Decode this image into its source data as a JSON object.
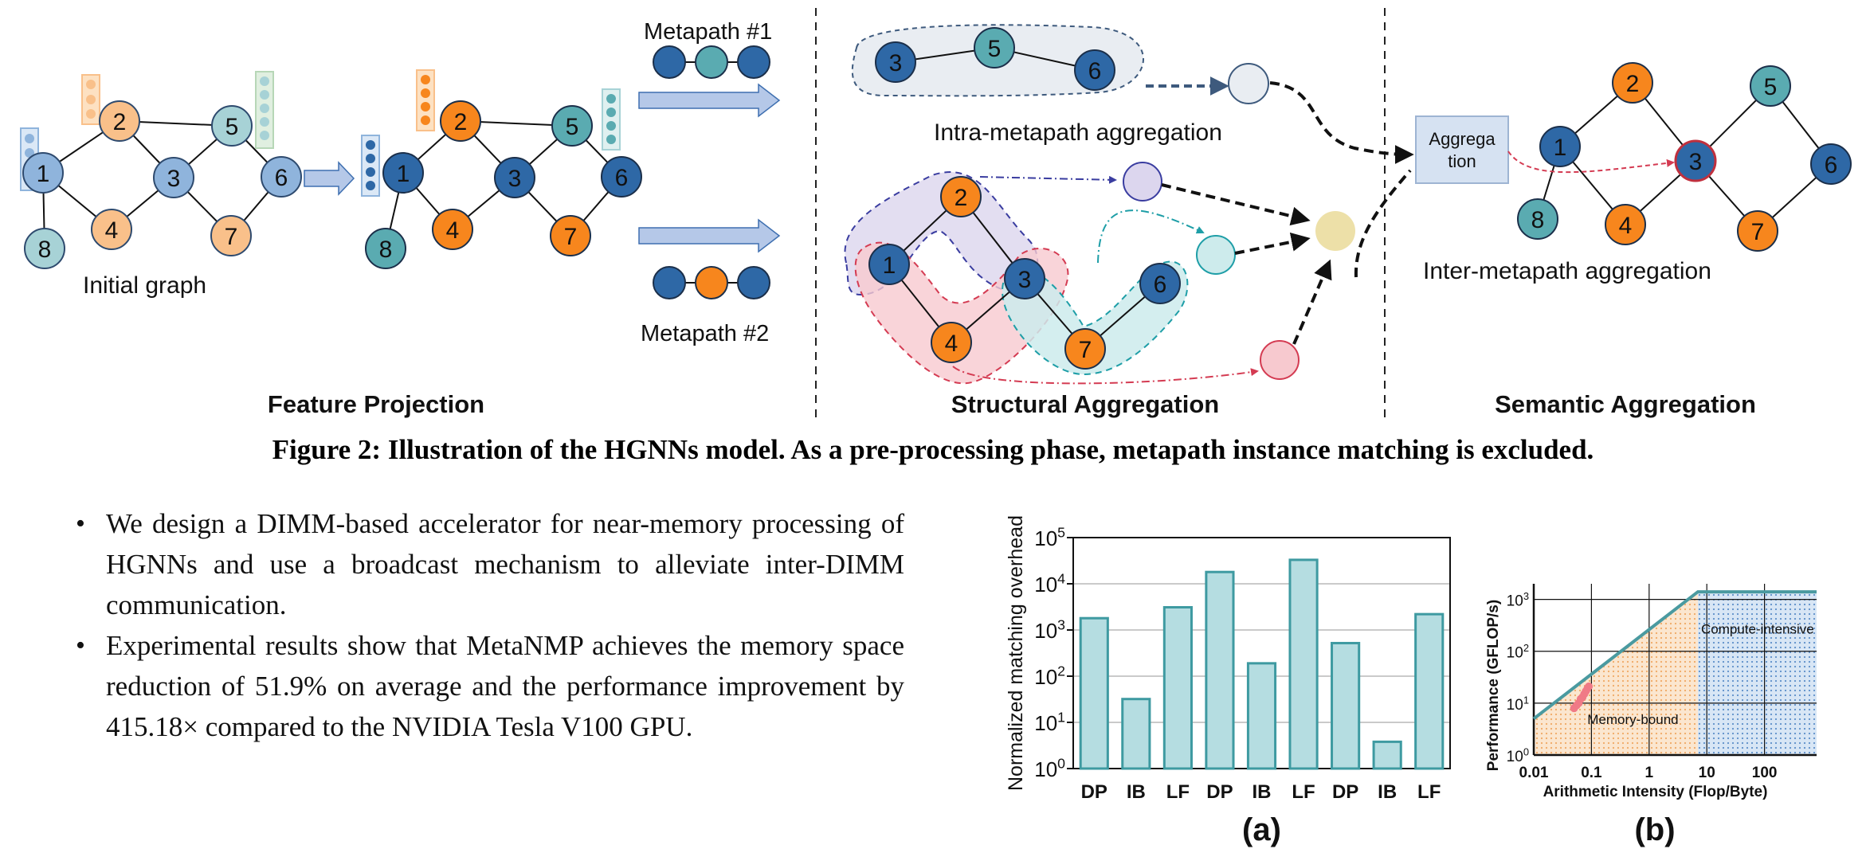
{
  "figure": {
    "caption": "Figure 2: Illustration of the HGNNs model. As a pre-processing phase, metapath instance matching is excluded.",
    "sections": {
      "feature_projection": "Feature Projection",
      "structural_aggregation": "Structural Aggregation",
      "semantic_aggregation": "Semantic Aggregation"
    },
    "labels": {
      "initial_graph": "Initial graph",
      "metapath1": "Metapath #1",
      "metapath2": "Metapath #2",
      "intra": "Intra-metapath aggregation",
      "inter": "Inter-metapath aggregation",
      "aggregation_box_line1": "Aggrega",
      "aggregation_box_line2": "tion"
    },
    "node_labels": {
      "n1": "1",
      "n2": "2",
      "n3": "3",
      "n4": "4",
      "n5": "5",
      "n6": "6",
      "n7": "7",
      "n8": "8"
    },
    "colors": {
      "dark_blue": "#2e68a6",
      "light_blue": "#8fb4dc",
      "teal": "#5aabb1",
      "light_teal": "#a7d2d6",
      "orange": "#f7861d",
      "light_orange": "#f9c08a",
      "pale": "#e9edf2",
      "arrow_fill": "#b5c8e8"
    }
  },
  "bullets": [
    "We design a DIMM-based accelerator for near-memory processing of HGNNs and use a broadcast mechanism to alleviate inter-DIMM communication.",
    "Experimental results show that MetaNMP achieves the memory space reduction of 51.9% on average and the performance improvement by 415.18× compared to the NVIDIA Tesla V100 GPU."
  ],
  "chart_data": [
    {
      "type": "bar",
      "panel_label": "(a)",
      "ylabel": "Normalized matching overhead",
      "yscale": "log",
      "ylim": [
        1,
        100000
      ],
      "y_tick_values": [
        1,
        10,
        100,
        1000,
        10000,
        100000
      ],
      "y_tick_bases": [
        "10",
        "10",
        "10",
        "10",
        "10",
        "10"
      ],
      "y_tick_exponents": [
        "0",
        "1",
        "2",
        "3",
        "4",
        "5"
      ],
      "grid": true,
      "categories": [
        "DP",
        "IB",
        "LF",
        "DP",
        "IB",
        "LF",
        "DP",
        "IB",
        "LF"
      ],
      "values": [
        1800,
        32,
        3100,
        18000,
        190,
        33000,
        520,
        3.8,
        2200
      ],
      "color": "#b5dde1"
    },
    {
      "type": "area",
      "panel_label": "(b)",
      "xlabel": "Arithmetic Intensity (Flop/Byte)",
      "ylabel": "Performance (GFLOP/s)",
      "xscale": "log",
      "yscale": "log",
      "xlim": [
        0.01,
        800
      ],
      "ylim": [
        1,
        2000
      ],
      "x_tick_values": [
        0.01,
        0.1,
        1,
        10,
        100
      ],
      "x_tick_labels": [
        "0.01",
        "0.1",
        "1",
        "10",
        "100"
      ],
      "y_tick_values": [
        1,
        10,
        100,
        1000
      ],
      "y_tick_bases": [
        "10",
        "10",
        "10",
        "10"
      ],
      "y_tick_exponents": [
        "0",
        "1",
        "2",
        "3"
      ],
      "roofline": {
        "x": [
          0.01,
          7,
          800
        ],
        "y": [
          5,
          1400,
          1400
        ]
      },
      "ridge_x": 7,
      "regions": [
        {
          "name": "Memory-bound",
          "color": "#f2b07a"
        },
        {
          "name": "Compute-intensive",
          "color": "#7aa6d6"
        }
      ],
      "points": {
        "x": [
          0.05,
          0.055,
          0.06,
          0.065,
          0.07,
          0.075,
          0.08,
          0.085,
          0.09
        ],
        "y": [
          8,
          9,
          10,
          12,
          13,
          15,
          17,
          19,
          21
        ],
        "color": "#f07a86"
      },
      "grid": true
    }
  ]
}
